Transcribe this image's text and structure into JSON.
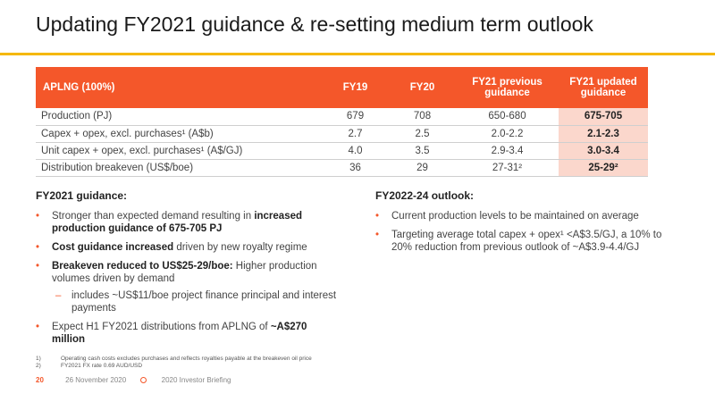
{
  "title": "Updating FY2021 guidance & re-setting medium term outlook",
  "table": {
    "headers": [
      "APLNG (100%)",
      "FY19",
      "FY20",
      "FY21 previous guidance",
      "FY21 updated guidance"
    ],
    "rows": [
      {
        "label": "Production (PJ)",
        "fy19": "679",
        "fy20": "708",
        "prev": "650-680",
        "upd": "675-705"
      },
      {
        "label": "Capex + opex, excl. purchases¹ (A$b)",
        "fy19": "2.7",
        "fy20": "2.5",
        "prev": "2.0-2.2",
        "upd": "2.1-2.3"
      },
      {
        "label": "Unit capex + opex, excl. purchases¹ (A$/GJ)",
        "fy19": "4.0",
        "fy20": "3.5",
        "prev": "2.9-3.4",
        "upd": "3.0-3.4"
      },
      {
        "label": "Distribution breakeven (US$/boe)",
        "fy19": "36",
        "fy20": "29",
        "prev": "27-31²",
        "upd": "25-29²"
      }
    ]
  },
  "left": {
    "heading": "FY2021 guidance:",
    "b1_pre": "Stronger than expected demand resulting in ",
    "b1_bold": "increased production guidance of 675-705 PJ",
    "b2_bold": "Cost guidance increased",
    "b2_post": " driven by new royalty regime",
    "b3_bold": "Breakeven reduced to US$25-29/boe:",
    "b3_post": " Higher production volumes driven by demand",
    "b3_sub": "includes ~US$11/boe project finance principal and interest payments",
    "b4_pre": "Expect H1 FY2021 distributions from APLNG of ",
    "b4_bold": "~A$270 million"
  },
  "right": {
    "heading": "FY2022-24 outlook:",
    "b1": "Current production levels to be maintained on average",
    "b2": "Targeting average total capex + opex¹ <A$3.5/GJ, a 10% to 20% reduction from previous outlook of ~A$3.9-4.4/GJ"
  },
  "footnotes": [
    {
      "n": "1)",
      "text": "Operating cash costs excludes purchases and reflects royalties payable at the breakeven oil price"
    },
    {
      "n": "2)",
      "text": "FY2021 FX rate 0.69 AUD/USD"
    }
  ],
  "footer": {
    "page": "20",
    "date": "26 November 2020",
    "event": "2020 Investor Briefing"
  },
  "colors": {
    "accent": "#f4572a",
    "highlight": "#fbd7cc",
    "rule": "#f5b800"
  }
}
